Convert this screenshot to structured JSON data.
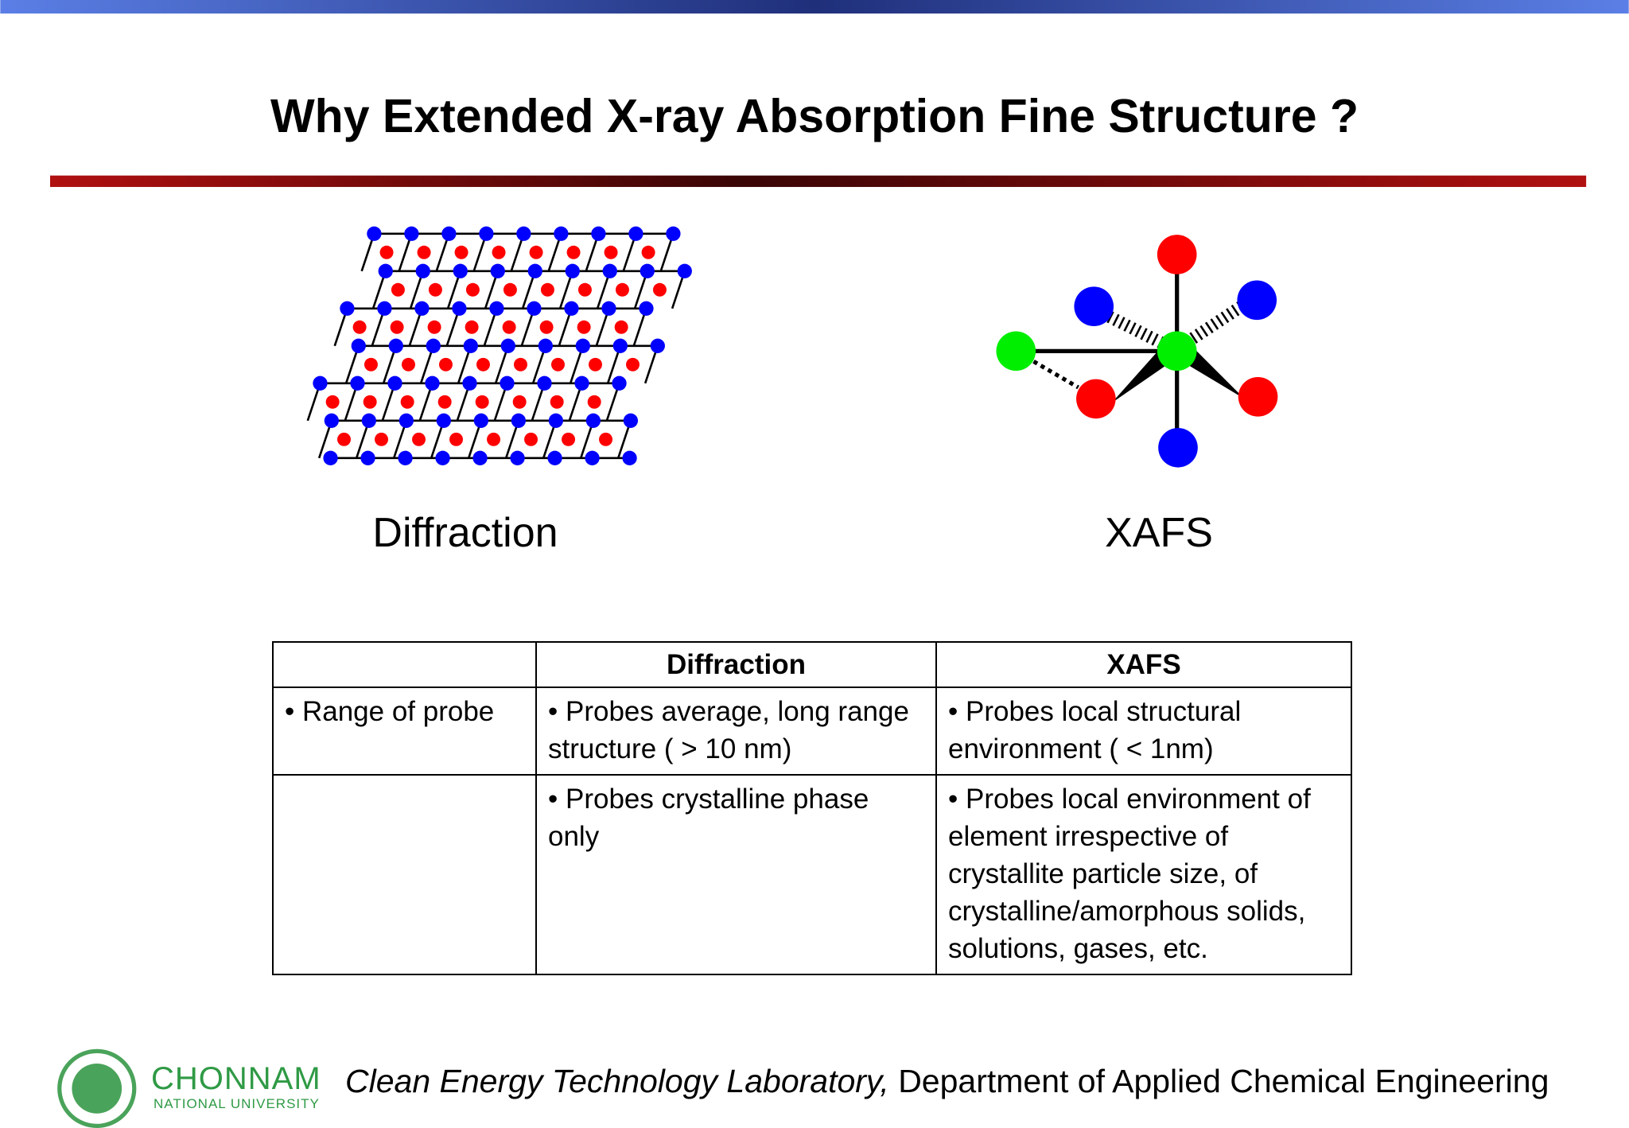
{
  "header": {
    "title": "Why Extended X-ray Absorption Fine Structure ?"
  },
  "figures": [
    {
      "caption": "Diffraction"
    },
    {
      "caption": "XAFS"
    }
  ],
  "table": {
    "header": [
      "Diffraction",
      "XAFS"
    ],
    "rows": [
      {
        "label": "• Range of probe",
        "diffraction": "• Probes average, long range structure ( > 10 nm)",
        "xafs": "• Probes local structural environment ( < 1nm)"
      },
      {
        "diffraction": "• Probes crystalline phase only",
        "xafs": "• Probes local environment of element irrespective of crystallite particle size, of crystalline/amorphous solids, solutions, gases, etc."
      }
    ]
  },
  "footer": {
    "logo_name": "CHONNAM",
    "logo_sub": "NATIONAL UNIVERSITY",
    "lab": "Clean Energy Technology Laboratory,",
    "department": "Department of Applied Chemical Engineering"
  }
}
